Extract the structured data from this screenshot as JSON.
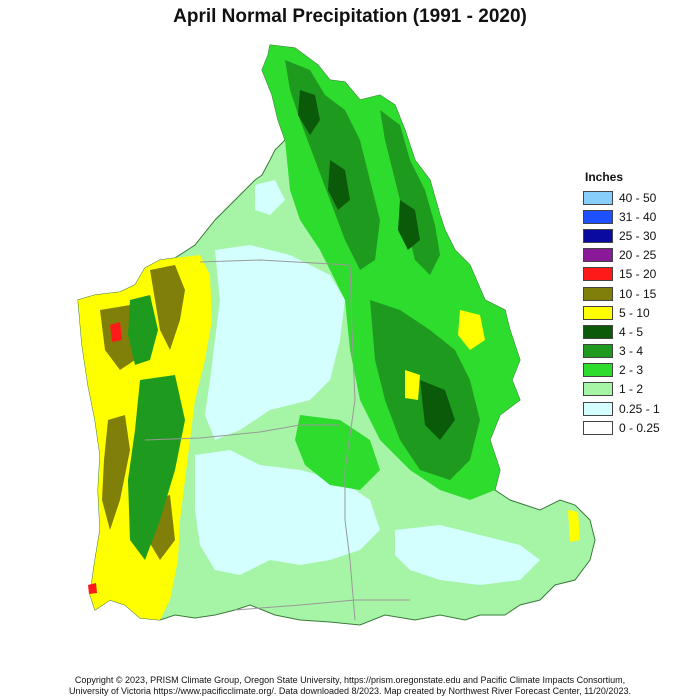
{
  "title": "April Normal Precipitation (1991 - 2020)",
  "legend": {
    "title": "Inches",
    "items": [
      {
        "label": "40 - 50",
        "color": "#87CEFA"
      },
      {
        "label": "31 - 40",
        "color": "#1E50FF"
      },
      {
        "label": "25 - 30",
        "color": "#0A0AA0"
      },
      {
        "label": "20 - 25",
        "color": "#8B1A9B"
      },
      {
        "label": "15 - 20",
        "color": "#FF1A1A"
      },
      {
        "label": "10 - 15",
        "color": "#7F7F0A"
      },
      {
        "label": "5 - 10",
        "color": "#FFFF00"
      },
      {
        "label": "4 - 5",
        "color": "#0A5A0A"
      },
      {
        "label": "3 - 4",
        "color": "#1E9B1E"
      },
      {
        "label": "2 - 3",
        "color": "#2EDC2E"
      },
      {
        "label": "1 - 2",
        "color": "#A6F5A6"
      },
      {
        "label": "0.25 - 1",
        "color": "#D4FFFF"
      },
      {
        "label": "0 - 0.25",
        "color": "#FFFFFF"
      }
    ]
  },
  "credit": {
    "line1": "Copyright © 2023, PRISM Climate Group, Oregon State University, https://prism.oregonstate.edu and Pacific Climate Impacts Consortium,",
    "line2": "University of Victoria https://www.pacificclimate.org/.  Data downloaded 8/2023. Map created by Northwest River Forecast Center, 11/20/2023."
  }
}
